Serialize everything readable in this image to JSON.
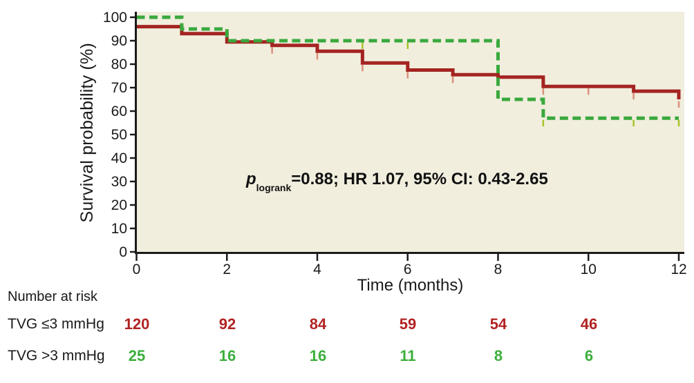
{
  "figure": {
    "y_axis_label": "Survival probability (%)",
    "x_axis_label": "Time (months)",
    "annotation": {
      "p": "p",
      "sub": "logrank",
      "text": "=0.88; HR 1.07, 95% CI: 0.43-2.65"
    }
  },
  "chart_data": {
    "type": "line",
    "subtype": "kaplan-meier-step",
    "title": "",
    "xlabel": "Time (months)",
    "ylabel": "Survival probability (%)",
    "xlim": [
      0,
      12
    ],
    "ylim": [
      0,
      100
    ],
    "x_ticks": [
      0,
      2,
      4,
      6,
      8,
      10,
      12
    ],
    "y_ticks": [
      0,
      10,
      20,
      30,
      40,
      50,
      60,
      70,
      80,
      90,
      100
    ],
    "grid": false,
    "legend": "none",
    "plot_bg_color": "#F1EEDE",
    "axis_color": "#1a1a1a",
    "annotation": "p_logrank=0.88; HR 1.07, 95% CI: 0.43-2.65",
    "series": [
      {
        "name": "TVG ≤3 mmHg",
        "style": "solid",
        "color": "#A42421",
        "censor_color": "#DB8F7B",
        "steps": [
          [
            0,
            96
          ],
          [
            1,
            96
          ],
          [
            1,
            93
          ],
          [
            2,
            93
          ],
          [
            2,
            89.5
          ],
          [
            3,
            89.5
          ],
          [
            3,
            88
          ],
          [
            4,
            88
          ],
          [
            4,
            85.5
          ],
          [
            5,
            85.5
          ],
          [
            5,
            80.5
          ],
          [
            6,
            80.5
          ],
          [
            6,
            77.5
          ],
          [
            7,
            77.5
          ],
          [
            7,
            75.5
          ],
          [
            8,
            75.5
          ],
          [
            8,
            74.5
          ],
          [
            9,
            74.5
          ],
          [
            9,
            70.5
          ],
          [
            11,
            70.5
          ],
          [
            11,
            68.5
          ],
          [
            12,
            68.5
          ],
          [
            12,
            65
          ]
        ],
        "censor_marks": [
          [
            3,
            88
          ],
          [
            4,
            85.5
          ],
          [
            5,
            80.5
          ],
          [
            6,
            77.5
          ],
          [
            7,
            75.5
          ],
          [
            9,
            70.5
          ],
          [
            10,
            70.5
          ],
          [
            11,
            68.5
          ],
          [
            12,
            65
          ]
        ]
      },
      {
        "name": "TVG >3 mmHg",
        "style": "dashed",
        "color": "#3AA93D",
        "censor_color": "#A6C428",
        "steps": [
          [
            0,
            100
          ],
          [
            1,
            100
          ],
          [
            1,
            95
          ],
          [
            2,
            95
          ],
          [
            2,
            90
          ],
          [
            8,
            90
          ],
          [
            8,
            65
          ],
          [
            9,
            65
          ],
          [
            9,
            57
          ],
          [
            12,
            57
          ]
        ],
        "censor_marks": [
          [
            5,
            90
          ],
          [
            6,
            90
          ],
          [
            9,
            57
          ],
          [
            11,
            57
          ],
          [
            12,
            57
          ]
        ]
      }
    ]
  },
  "risk_table": {
    "title": "Number at risk",
    "time_points": [
      0,
      2,
      4,
      6,
      8,
      10
    ],
    "rows": [
      {
        "label": "TVG ≤3 mmHg",
        "color": "#B22222",
        "values": [
          "120",
          "92",
          "84",
          "59",
          "54",
          "46"
        ]
      },
      {
        "label": "TVG >3 mmHg",
        "color": "#3CAF3C",
        "values": [
          "25",
          "16",
          "16",
          "11",
          "8",
          "6"
        ]
      }
    ]
  }
}
